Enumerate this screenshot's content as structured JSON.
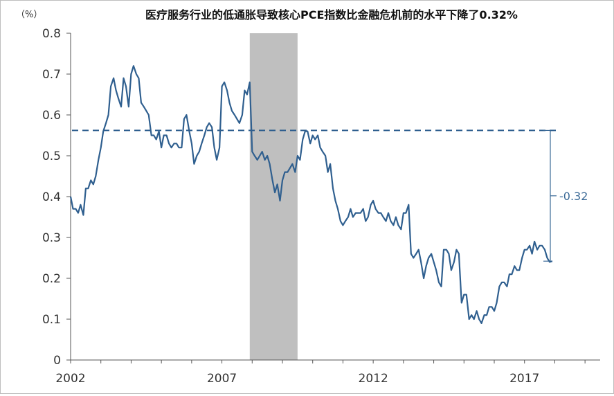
{
  "chart_data": {
    "type": "line",
    "title": "医疗服务行业的低通胀导致核心PCE指数比金融危机前的水平下降了0.32%",
    "unit": "（%）",
    "ylim": [
      0,
      0.8
    ],
    "yticks": [
      "0",
      "0.1",
      "0.2",
      "0.3",
      "0.4",
      "0.5",
      "0.6",
      "0.7",
      "0.8"
    ],
    "xlim": [
      2002,
      2019.5
    ],
    "xticks": [
      {
        "value": 2002,
        "label": "2002"
      },
      {
        "value": 2007,
        "label": "2007"
      },
      {
        "value": 2012,
        "label": "2012"
      },
      {
        "value": 2017,
        "label": "2017"
      }
    ],
    "recession_band": [
      2007.92,
      2009.5
    ],
    "reference_level": 0.562,
    "end_value": 0.242,
    "annotation": "-0.32",
    "colors": {
      "line": "#2f5f8f",
      "band": "#bfbfbf",
      "annotation": "#3b6a97"
    },
    "series": [
      {
        "values": [
          [
            2002.0,
            0.4
          ],
          [
            2002.08,
            0.37
          ],
          [
            2002.17,
            0.37
          ],
          [
            2002.25,
            0.36
          ],
          [
            2002.33,
            0.38
          ],
          [
            2002.42,
            0.355
          ],
          [
            2002.5,
            0.42
          ],
          [
            2002.58,
            0.42
          ],
          [
            2002.67,
            0.44
          ],
          [
            2002.75,
            0.43
          ],
          [
            2002.83,
            0.45
          ],
          [
            2002.92,
            0.49
          ],
          [
            2003.0,
            0.52
          ],
          [
            2003.08,
            0.56
          ],
          [
            2003.17,
            0.58
          ],
          [
            2003.25,
            0.6
          ],
          [
            2003.33,
            0.67
          ],
          [
            2003.42,
            0.69
          ],
          [
            2003.5,
            0.66
          ],
          [
            2003.58,
            0.64
          ],
          [
            2003.67,
            0.62
          ],
          [
            2003.75,
            0.69
          ],
          [
            2003.83,
            0.67
          ],
          [
            2003.92,
            0.62
          ],
          [
            2004.0,
            0.7
          ],
          [
            2004.08,
            0.72
          ],
          [
            2004.17,
            0.7
          ],
          [
            2004.25,
            0.69
          ],
          [
            2004.33,
            0.63
          ],
          [
            2004.42,
            0.62
          ],
          [
            2004.5,
            0.61
          ],
          [
            2004.58,
            0.6
          ],
          [
            2004.67,
            0.55
          ],
          [
            2004.75,
            0.55
          ],
          [
            2004.83,
            0.54
          ],
          [
            2004.92,
            0.56
          ],
          [
            2005.0,
            0.52
          ],
          [
            2005.08,
            0.55
          ],
          [
            2005.17,
            0.55
          ],
          [
            2005.25,
            0.53
          ],
          [
            2005.33,
            0.52
          ],
          [
            2005.42,
            0.53
          ],
          [
            2005.5,
            0.53
          ],
          [
            2005.58,
            0.52
          ],
          [
            2005.67,
            0.52
          ],
          [
            2005.75,
            0.59
          ],
          [
            2005.83,
            0.6
          ],
          [
            2005.92,
            0.56
          ],
          [
            2006.0,
            0.53
          ],
          [
            2006.08,
            0.48
          ],
          [
            2006.17,
            0.5
          ],
          [
            2006.25,
            0.51
          ],
          [
            2006.33,
            0.53
          ],
          [
            2006.42,
            0.55
          ],
          [
            2006.5,
            0.57
          ],
          [
            2006.58,
            0.58
          ],
          [
            2006.67,
            0.57
          ],
          [
            2006.75,
            0.52
          ],
          [
            2006.83,
            0.49
          ],
          [
            2006.92,
            0.52
          ],
          [
            2007.0,
            0.67
          ],
          [
            2007.08,
            0.68
          ],
          [
            2007.17,
            0.66
          ],
          [
            2007.25,
            0.63
          ],
          [
            2007.33,
            0.61
          ],
          [
            2007.42,
            0.6
          ],
          [
            2007.5,
            0.59
          ],
          [
            2007.58,
            0.58
          ],
          [
            2007.67,
            0.6
          ],
          [
            2007.75,
            0.66
          ],
          [
            2007.83,
            0.65
          ],
          [
            2007.92,
            0.68
          ],
          [
            2008.0,
            0.51
          ],
          [
            2008.08,
            0.5
          ],
          [
            2008.17,
            0.49
          ],
          [
            2008.25,
            0.5
          ],
          [
            2008.33,
            0.51
          ],
          [
            2008.42,
            0.49
          ],
          [
            2008.5,
            0.5
          ],
          [
            2008.58,
            0.48
          ],
          [
            2008.67,
            0.44
          ],
          [
            2008.75,
            0.41
          ],
          [
            2008.83,
            0.43
          ],
          [
            2008.92,
            0.39
          ],
          [
            2009.0,
            0.44
          ],
          [
            2009.08,
            0.46
          ],
          [
            2009.17,
            0.46
          ],
          [
            2009.25,
            0.47
          ],
          [
            2009.33,
            0.48
          ],
          [
            2009.42,
            0.46
          ],
          [
            2009.5,
            0.5
          ],
          [
            2009.58,
            0.49
          ],
          [
            2009.67,
            0.54
          ],
          [
            2009.75,
            0.56
          ],
          [
            2009.83,
            0.56
          ],
          [
            2009.92,
            0.53
          ],
          [
            2010.0,
            0.55
          ],
          [
            2010.08,
            0.54
          ],
          [
            2010.17,
            0.55
          ],
          [
            2010.25,
            0.52
          ],
          [
            2010.33,
            0.51
          ],
          [
            2010.42,
            0.5
          ],
          [
            2010.5,
            0.46
          ],
          [
            2010.58,
            0.48
          ],
          [
            2010.67,
            0.42
          ],
          [
            2010.75,
            0.39
          ],
          [
            2010.83,
            0.37
          ],
          [
            2010.92,
            0.34
          ],
          [
            2011.0,
            0.33
          ],
          [
            2011.08,
            0.34
          ],
          [
            2011.17,
            0.35
          ],
          [
            2011.25,
            0.37
          ],
          [
            2011.33,
            0.35
          ],
          [
            2011.42,
            0.36
          ],
          [
            2011.5,
            0.36
          ],
          [
            2011.58,
            0.36
          ],
          [
            2011.67,
            0.37
          ],
          [
            2011.75,
            0.34
          ],
          [
            2011.83,
            0.35
          ],
          [
            2011.92,
            0.38
          ],
          [
            2012.0,
            0.39
          ],
          [
            2012.08,
            0.37
          ],
          [
            2012.17,
            0.36
          ],
          [
            2012.25,
            0.36
          ],
          [
            2012.33,
            0.35
          ],
          [
            2012.42,
            0.34
          ],
          [
            2012.5,
            0.36
          ],
          [
            2012.58,
            0.34
          ],
          [
            2012.67,
            0.33
          ],
          [
            2012.75,
            0.35
          ],
          [
            2012.83,
            0.33
          ],
          [
            2012.92,
            0.32
          ],
          [
            2013.0,
            0.36
          ],
          [
            2013.08,
            0.36
          ],
          [
            2013.17,
            0.38
          ],
          [
            2013.25,
            0.26
          ],
          [
            2013.33,
            0.25
          ],
          [
            2013.42,
            0.26
          ],
          [
            2013.5,
            0.27
          ],
          [
            2013.58,
            0.24
          ],
          [
            2013.67,
            0.2
          ],
          [
            2013.75,
            0.23
          ],
          [
            2013.83,
            0.25
          ],
          [
            2013.92,
            0.26
          ],
          [
            2014.0,
            0.24
          ],
          [
            2014.08,
            0.22
          ],
          [
            2014.17,
            0.19
          ],
          [
            2014.25,
            0.18
          ],
          [
            2014.33,
            0.27
          ],
          [
            2014.42,
            0.27
          ],
          [
            2014.5,
            0.26
          ],
          [
            2014.58,
            0.22
          ],
          [
            2014.67,
            0.24
          ],
          [
            2014.75,
            0.27
          ],
          [
            2014.83,
            0.26
          ],
          [
            2014.92,
            0.14
          ],
          [
            2015.0,
            0.16
          ],
          [
            2015.08,
            0.16
          ],
          [
            2015.17,
            0.1
          ],
          [
            2015.25,
            0.11
          ],
          [
            2015.33,
            0.1
          ],
          [
            2015.42,
            0.12
          ],
          [
            2015.5,
            0.1
          ],
          [
            2015.58,
            0.09
          ],
          [
            2015.67,
            0.11
          ],
          [
            2015.75,
            0.11
          ],
          [
            2015.83,
            0.13
          ],
          [
            2015.92,
            0.13
          ],
          [
            2016.0,
            0.12
          ],
          [
            2016.08,
            0.14
          ],
          [
            2016.17,
            0.18
          ],
          [
            2016.25,
            0.19
          ],
          [
            2016.33,
            0.19
          ],
          [
            2016.42,
            0.18
          ],
          [
            2016.5,
            0.21
          ],
          [
            2016.58,
            0.21
          ],
          [
            2016.67,
            0.23
          ],
          [
            2016.75,
            0.22
          ],
          [
            2016.83,
            0.22
          ],
          [
            2016.92,
            0.25
          ],
          [
            2017.0,
            0.27
          ],
          [
            2017.08,
            0.27
          ],
          [
            2017.17,
            0.28
          ],
          [
            2017.25,
            0.26
          ],
          [
            2017.33,
            0.29
          ],
          [
            2017.42,
            0.27
          ],
          [
            2017.5,
            0.28
          ],
          [
            2017.58,
            0.28
          ],
          [
            2017.67,
            0.27
          ],
          [
            2017.75,
            0.25
          ],
          [
            2017.83,
            0.24
          ],
          [
            2017.92,
            0.242
          ]
        ]
      }
    ]
  }
}
